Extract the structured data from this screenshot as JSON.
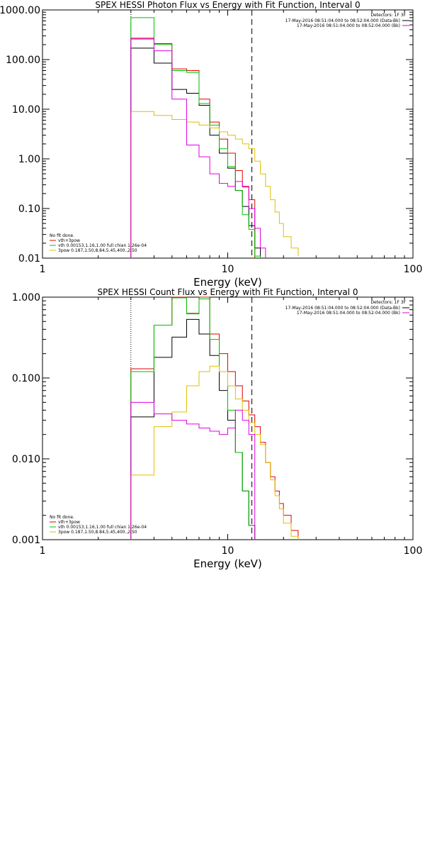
{
  "chart_data": [
    {
      "type": "line",
      "title": "SPEX HESSI Photon Flux vs Energy with Fit Function, Interval 0",
      "xlabel": "Energy (keV)",
      "ylabel": "",
      "xscale": "log",
      "yscale": "log",
      "xlim": [
        1,
        100
      ],
      "ylim": [
        0.01,
        1000
      ],
      "xticks": [
        1,
        10,
        100
      ],
      "xtick_labels": [
        "1",
        "10",
        "100"
      ],
      "yticks": [
        0.01,
        0.1,
        1,
        10,
        100,
        1000
      ],
      "ytick_labels": [
        "0.01",
        "0.10",
        "1.00",
        "10.00",
        "100.00",
        "1000.00"
      ],
      "vlines": [
        {
          "x": 3,
          "style": "dotted",
          "color": "#000000"
        },
        {
          "x": 13.5,
          "style": "dashed",
          "color": "#000000"
        }
      ],
      "detectors": "Detectors: 1F 3F",
      "time_ranges": [
        {
          "text": "17-May-2016 08:51:04.000 to 08:52:04.000 (Data-Bk)",
          "color": "#000000"
        },
        {
          "text": "17-May-2016 08:51:04.000 to 08:52:04.000 (Bk)",
          "color": "#e000e0"
        }
      ],
      "legend_position": "bottom-left",
      "fit_notes": [
        {
          "text": "No fit done.",
          "color": "#000000"
        },
        {
          "text": "vth+3pow",
          "color": "#e00000"
        },
        {
          "text": "vth 0.00153,1.16,1.00  full chian 1.26e-04",
          "color": "#00c000"
        },
        {
          "text": "3pow 0.187,1.50,8.84,5.45,400.,2.50",
          "color": "#e0c000"
        }
      ],
      "bin_edges": [
        3,
        4,
        5,
        6,
        7,
        8,
        9,
        10,
        11,
        12,
        13,
        14,
        15,
        16,
        17,
        18,
        19,
        20,
        22,
        24
      ],
      "series": [
        {
          "name": "Data-Bk",
          "color": "#000000",
          "values": [
            170,
            85,
            25,
            21,
            12,
            3.0,
            1.3,
            0.65,
            0.23,
            0.11,
            0.045,
            0.016
          ]
        },
        {
          "name": "vth+3pow",
          "color": "#e00000",
          "values": [
            260,
            210,
            65,
            60,
            16,
            5.5,
            2.5,
            1.3,
            0.58,
            0.28,
            0.15
          ]
        },
        {
          "name": "vth",
          "color": "#00c000",
          "values": [
            700,
            200,
            60,
            55,
            13,
            4.8,
            1.6,
            0.7,
            0.23,
            0.075,
            0.038,
            0.011
          ]
        },
        {
          "name": "3pow",
          "color": "#e0c000",
          "values": [
            9.0,
            7.5,
            6.2,
            5.5,
            4.8,
            4.2,
            3.5,
            3.0,
            2.5,
            2.0,
            1.6,
            0.9,
            0.5,
            0.28,
            0.15,
            0.085,
            0.05,
            0.027,
            0.016,
            0.011
          ]
        },
        {
          "name": "Bk",
          "color": "#e000e0",
          "values": [
            270,
            150,
            16,
            1.9,
            1.1,
            0.5,
            0.32,
            0.28,
            0.35,
            0.27,
            0.1,
            0.04,
            0.016
          ]
        }
      ]
    },
    {
      "type": "line",
      "title": "SPEX HESSI Count Flux vs Energy with Fit Function, Interval 0",
      "xlabel": "Energy (keV)",
      "ylabel": "",
      "xscale": "log",
      "yscale": "log",
      "xlim": [
        1,
        100
      ],
      "ylim": [
        0.001,
        1
      ],
      "xticks": [
        1,
        10,
        100
      ],
      "xtick_labels": [
        "1",
        "10",
        "100"
      ],
      "yticks": [
        0.001,
        0.01,
        0.1,
        1
      ],
      "ytick_labels": [
        "0.001",
        "0.010",
        "0.100",
        "1.000"
      ],
      "vlines": [
        {
          "x": 3,
          "style": "dotted",
          "color": "#000000"
        },
        {
          "x": 13.5,
          "style": "dashed",
          "color": "#000000"
        }
      ],
      "detectors": "Detectors: 1F 3F",
      "time_ranges": [
        {
          "text": "17-May-2016 08:51:04.000 to 08:52:04.000 (Data-Bk)",
          "color": "#000000"
        },
        {
          "text": "17-May-2016 08:51:04.000 to 08:52:04.000 (Bk)",
          "color": "#e000e0"
        }
      ],
      "legend_position": "bottom-left",
      "fit_notes": [
        {
          "text": "No fit done.",
          "color": "#000000"
        },
        {
          "text": "vth+3pow",
          "color": "#e00000"
        },
        {
          "text": "vth 0.00153,1.16,1.00  full chian 1.26e-04",
          "color": "#00c000"
        },
        {
          "text": "3pow 0.187,1.50,8.84,5.45,400.,2.50",
          "color": "#e0c000"
        }
      ],
      "bin_edges": [
        3,
        4,
        5,
        6,
        7,
        8,
        9,
        10,
        11,
        12,
        13,
        14,
        15,
        16,
        17,
        18,
        19,
        20,
        22,
        24
      ],
      "series": [
        {
          "name": "Data-Bk",
          "color": "#000000",
          "values": [
            0.033,
            0.18,
            0.32,
            0.53,
            0.35,
            0.19,
            0.07,
            0.03,
            0.012,
            0.004,
            0.0015
          ]
        },
        {
          "name": "vth+3pow",
          "color": "#e00000",
          "values": [
            0.13,
            0.45,
            1.0,
            0.63,
            1.0,
            0.35,
            0.2,
            0.12,
            0.08,
            0.052,
            0.035,
            0.025,
            0.016,
            0.009,
            0.006,
            0.004,
            0.0028,
            0.002,
            0.0013,
            0.001
          ]
        },
        {
          "name": "vth",
          "color": "#00c000",
          "values": [
            0.12,
            0.45,
            0.98,
            0.62,
            0.95,
            0.3,
            0.12,
            0.04,
            0.012,
            0.004,
            0.0015
          ]
        },
        {
          "name": "3pow",
          "color": "#e0c000",
          "values": [
            0.0063,
            0.025,
            0.038,
            0.08,
            0.12,
            0.14,
            0.12,
            0.08,
            0.055,
            0.04,
            0.028,
            0.02,
            0.015,
            0.009,
            0.0055,
            0.0035,
            0.0024,
            0.0016,
            0.0011,
            0.001
          ]
        },
        {
          "name": "Bk",
          "color": "#e000e0",
          "values": [
            0.05,
            0.036,
            0.03,
            0.027,
            0.024,
            0.022,
            0.02,
            0.024,
            0.04,
            0.03,
            0.02
          ]
        }
      ]
    }
  ]
}
